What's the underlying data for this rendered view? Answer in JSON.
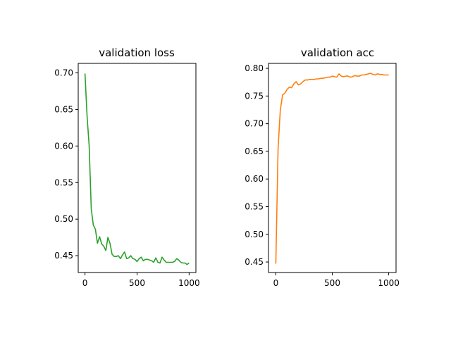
{
  "chart_data": [
    {
      "type": "line",
      "title": "validation loss",
      "xlabel": "",
      "ylabel": "",
      "xlim": [
        -65,
        1065
      ],
      "ylim": [
        0.427,
        0.713
      ],
      "xticks": [
        0,
        500,
        1000
      ],
      "xtick_labels": [
        "0",
        "500",
        "1000"
      ],
      "yticks": [
        0.45,
        0.5,
        0.55,
        0.6,
        0.65,
        0.7
      ],
      "ytick_labels": [
        "0.45",
        "0.50",
        "0.55",
        "0.60",
        "0.65",
        "0.70"
      ],
      "grid": false,
      "color": "#2ca02c",
      "series": [
        {
          "x": [
            0,
            20,
            40,
            60,
            80,
            100,
            120,
            140,
            160,
            180,
            200,
            220,
            240,
            260,
            280,
            300,
            320,
            340,
            360,
            380,
            400,
            420,
            440,
            460,
            480,
            500,
            520,
            540,
            560,
            580,
            600,
            620,
            640,
            660,
            680,
            700,
            720,
            740,
            760,
            780,
            800,
            820,
            840,
            860,
            880,
            900,
            920,
            940,
            960,
            980,
            1000
          ],
          "y": [
            0.699,
            0.64,
            0.601,
            0.514,
            0.492,
            0.486,
            0.467,
            0.476,
            0.466,
            0.463,
            0.457,
            0.475,
            0.467,
            0.452,
            0.449,
            0.449,
            0.45,
            0.446,
            0.451,
            0.455,
            0.446,
            0.447,
            0.45,
            0.446,
            0.445,
            0.442,
            0.446,
            0.448,
            0.443,
            0.445,
            0.445,
            0.444,
            0.443,
            0.441,
            0.447,
            0.441,
            0.44,
            0.448,
            0.444,
            0.441,
            0.441,
            0.441,
            0.441,
            0.442,
            0.446,
            0.444,
            0.441,
            0.44,
            0.44,
            0.438,
            0.44
          ]
        }
      ]
    },
    {
      "type": "line",
      "title": "validation acc",
      "xlabel": "",
      "ylabel": "",
      "xlim": [
        -65,
        1065
      ],
      "ylim": [
        0.431,
        0.809
      ],
      "xticks": [
        0,
        500,
        1000
      ],
      "xtick_labels": [
        "0",
        "500",
        "1000"
      ],
      "yticks": [
        0.45,
        0.5,
        0.55,
        0.6,
        0.65,
        0.7,
        0.75,
        0.8
      ],
      "ytick_labels": [
        "0.45",
        "0.50",
        "0.55",
        "0.60",
        "0.65",
        "0.70",
        "0.75",
        "0.80"
      ],
      "grid": false,
      "color": "#ff7f0e",
      "series": [
        {
          "x": [
            0,
            20,
            40,
            60,
            80,
            100,
            120,
            140,
            160,
            180,
            200,
            220,
            240,
            260,
            280,
            300,
            320,
            340,
            360,
            380,
            400,
            420,
            440,
            460,
            480,
            500,
            520,
            540,
            560,
            580,
            600,
            620,
            640,
            660,
            680,
            700,
            720,
            740,
            760,
            780,
            800,
            820,
            840,
            860,
            880,
            900,
            920,
            940,
            960,
            980,
            1000
          ],
          "y": [
            0.447,
            0.655,
            0.725,
            0.752,
            0.755,
            0.762,
            0.766,
            0.765,
            0.772,
            0.776,
            0.77,
            0.772,
            0.776,
            0.779,
            0.779,
            0.78,
            0.78,
            0.78,
            0.781,
            0.781,
            0.782,
            0.782,
            0.783,
            0.784,
            0.784,
            0.786,
            0.785,
            0.784,
            0.79,
            0.786,
            0.785,
            0.786,
            0.786,
            0.784,
            0.785,
            0.787,
            0.786,
            0.786,
            0.788,
            0.788,
            0.789,
            0.79,
            0.791,
            0.789,
            0.788,
            0.79,
            0.789,
            0.789,
            0.788,
            0.788,
            0.788
          ]
        }
      ]
    }
  ]
}
